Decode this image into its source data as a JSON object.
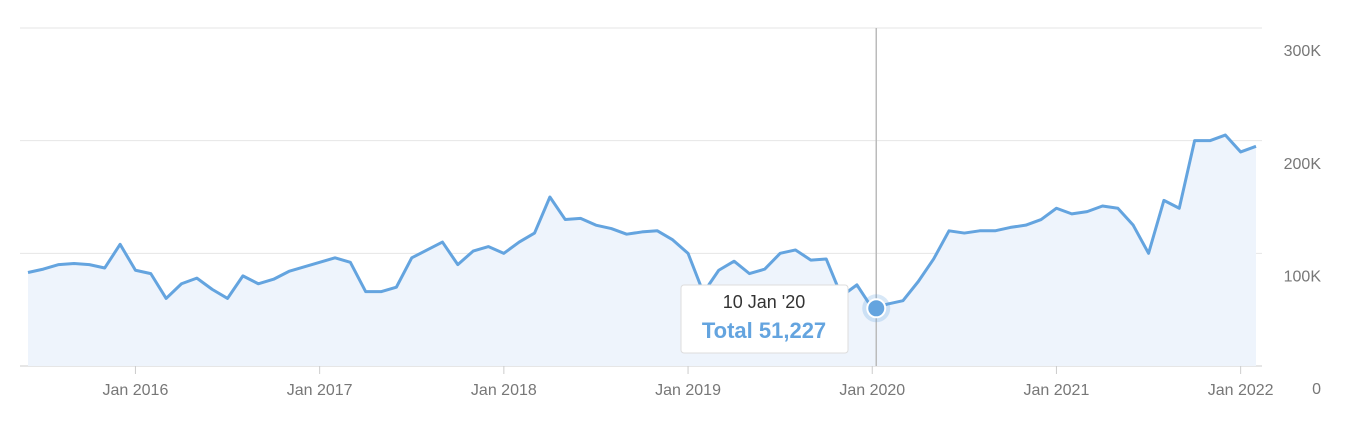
{
  "chart_data": {
    "type": "area",
    "x": [
      "2015-06",
      "2015-07",
      "2015-08",
      "2015-09",
      "2015-10",
      "2015-11",
      "2015-12",
      "2016-01",
      "2016-02",
      "2016-03",
      "2016-04",
      "2016-05",
      "2016-06",
      "2016-07",
      "2016-08",
      "2016-09",
      "2016-10",
      "2016-11",
      "2016-12",
      "2017-01",
      "2017-02",
      "2017-03",
      "2017-04",
      "2017-05",
      "2017-06",
      "2017-07",
      "2017-08",
      "2017-09",
      "2017-10",
      "2017-11",
      "2017-12",
      "2018-01",
      "2018-02",
      "2018-03",
      "2018-04",
      "2018-05",
      "2018-06",
      "2018-07",
      "2018-08",
      "2018-09",
      "2018-10",
      "2018-11",
      "2018-12",
      "2019-01",
      "2019-02",
      "2019-03",
      "2019-04",
      "2019-05",
      "2019-06",
      "2019-07",
      "2019-08",
      "2019-09",
      "2019-10",
      "2019-11",
      "2019-12",
      "2020-01",
      "2020-02",
      "2020-03",
      "2020-04",
      "2020-05",
      "2020-06",
      "2020-07",
      "2020-08",
      "2020-09",
      "2020-10",
      "2020-11",
      "2020-12",
      "2021-01",
      "2021-02",
      "2021-03",
      "2021-04",
      "2021-05",
      "2021-06",
      "2021-07",
      "2021-08",
      "2021-09",
      "2021-10",
      "2021-11",
      "2021-12",
      "2022-01",
      "2022-02"
    ],
    "series": [
      {
        "name": "Total",
        "color": "#64a4df",
        "fill": "#eef4fc",
        "values": [
          83000,
          86000,
          90000,
          91000,
          90000,
          87000,
          108000,
          85000,
          82000,
          60000,
          73000,
          78000,
          68000,
          60000,
          80000,
          73000,
          77000,
          84000,
          88000,
          92000,
          96000,
          92000,
          66000,
          66000,
          70000,
          96000,
          103000,
          110000,
          90000,
          102000,
          106000,
          100000,
          110000,
          118000,
          150000,
          130000,
          131000,
          125000,
          122000,
          117000,
          119000,
          120000,
          112000,
          100000,
          65000,
          85000,
          93000,
          82000,
          86000,
          100000,
          103000,
          94000,
          95000,
          62000,
          72000,
          51227,
          55000,
          58000,
          75000,
          95000,
          120000,
          118000,
          120000,
          120000,
          123000,
          125000,
          130000,
          140000,
          135000,
          137000,
          142000,
          140000,
          125000,
          100000,
          147000,
          140000,
          200000,
          200000,
          205000,
          190000,
          195000
        ]
      }
    ],
    "ylim": [
      0,
      300000
    ],
    "yticks": [
      {
        "value": 0,
        "label": "0"
      },
      {
        "value": 100000,
        "label": "100K"
      },
      {
        "value": 200000,
        "label": "200K"
      },
      {
        "value": 300000,
        "label": "300K"
      }
    ],
    "xlim": [
      "2015-06",
      "2022-02"
    ],
    "xticks": [
      {
        "value": "2016-01",
        "label": "Jan 2016"
      },
      {
        "value": "2017-01",
        "label": "Jan 2017"
      },
      {
        "value": "2018-01",
        "label": "Jan 2018"
      },
      {
        "value": "2019-01",
        "label": "Jan 2019"
      },
      {
        "value": "2020-01",
        "label": "Jan 2020"
      },
      {
        "value": "2021-01",
        "label": "Jan 2021"
      },
      {
        "value": "2022-01",
        "label": "Jan 2022"
      }
    ],
    "grid": true,
    "tooltip": {
      "x": "2020-01",
      "date_label": "10 Jan '20",
      "series_name": "Total",
      "value": 51227,
      "value_label": "51,227"
    }
  }
}
